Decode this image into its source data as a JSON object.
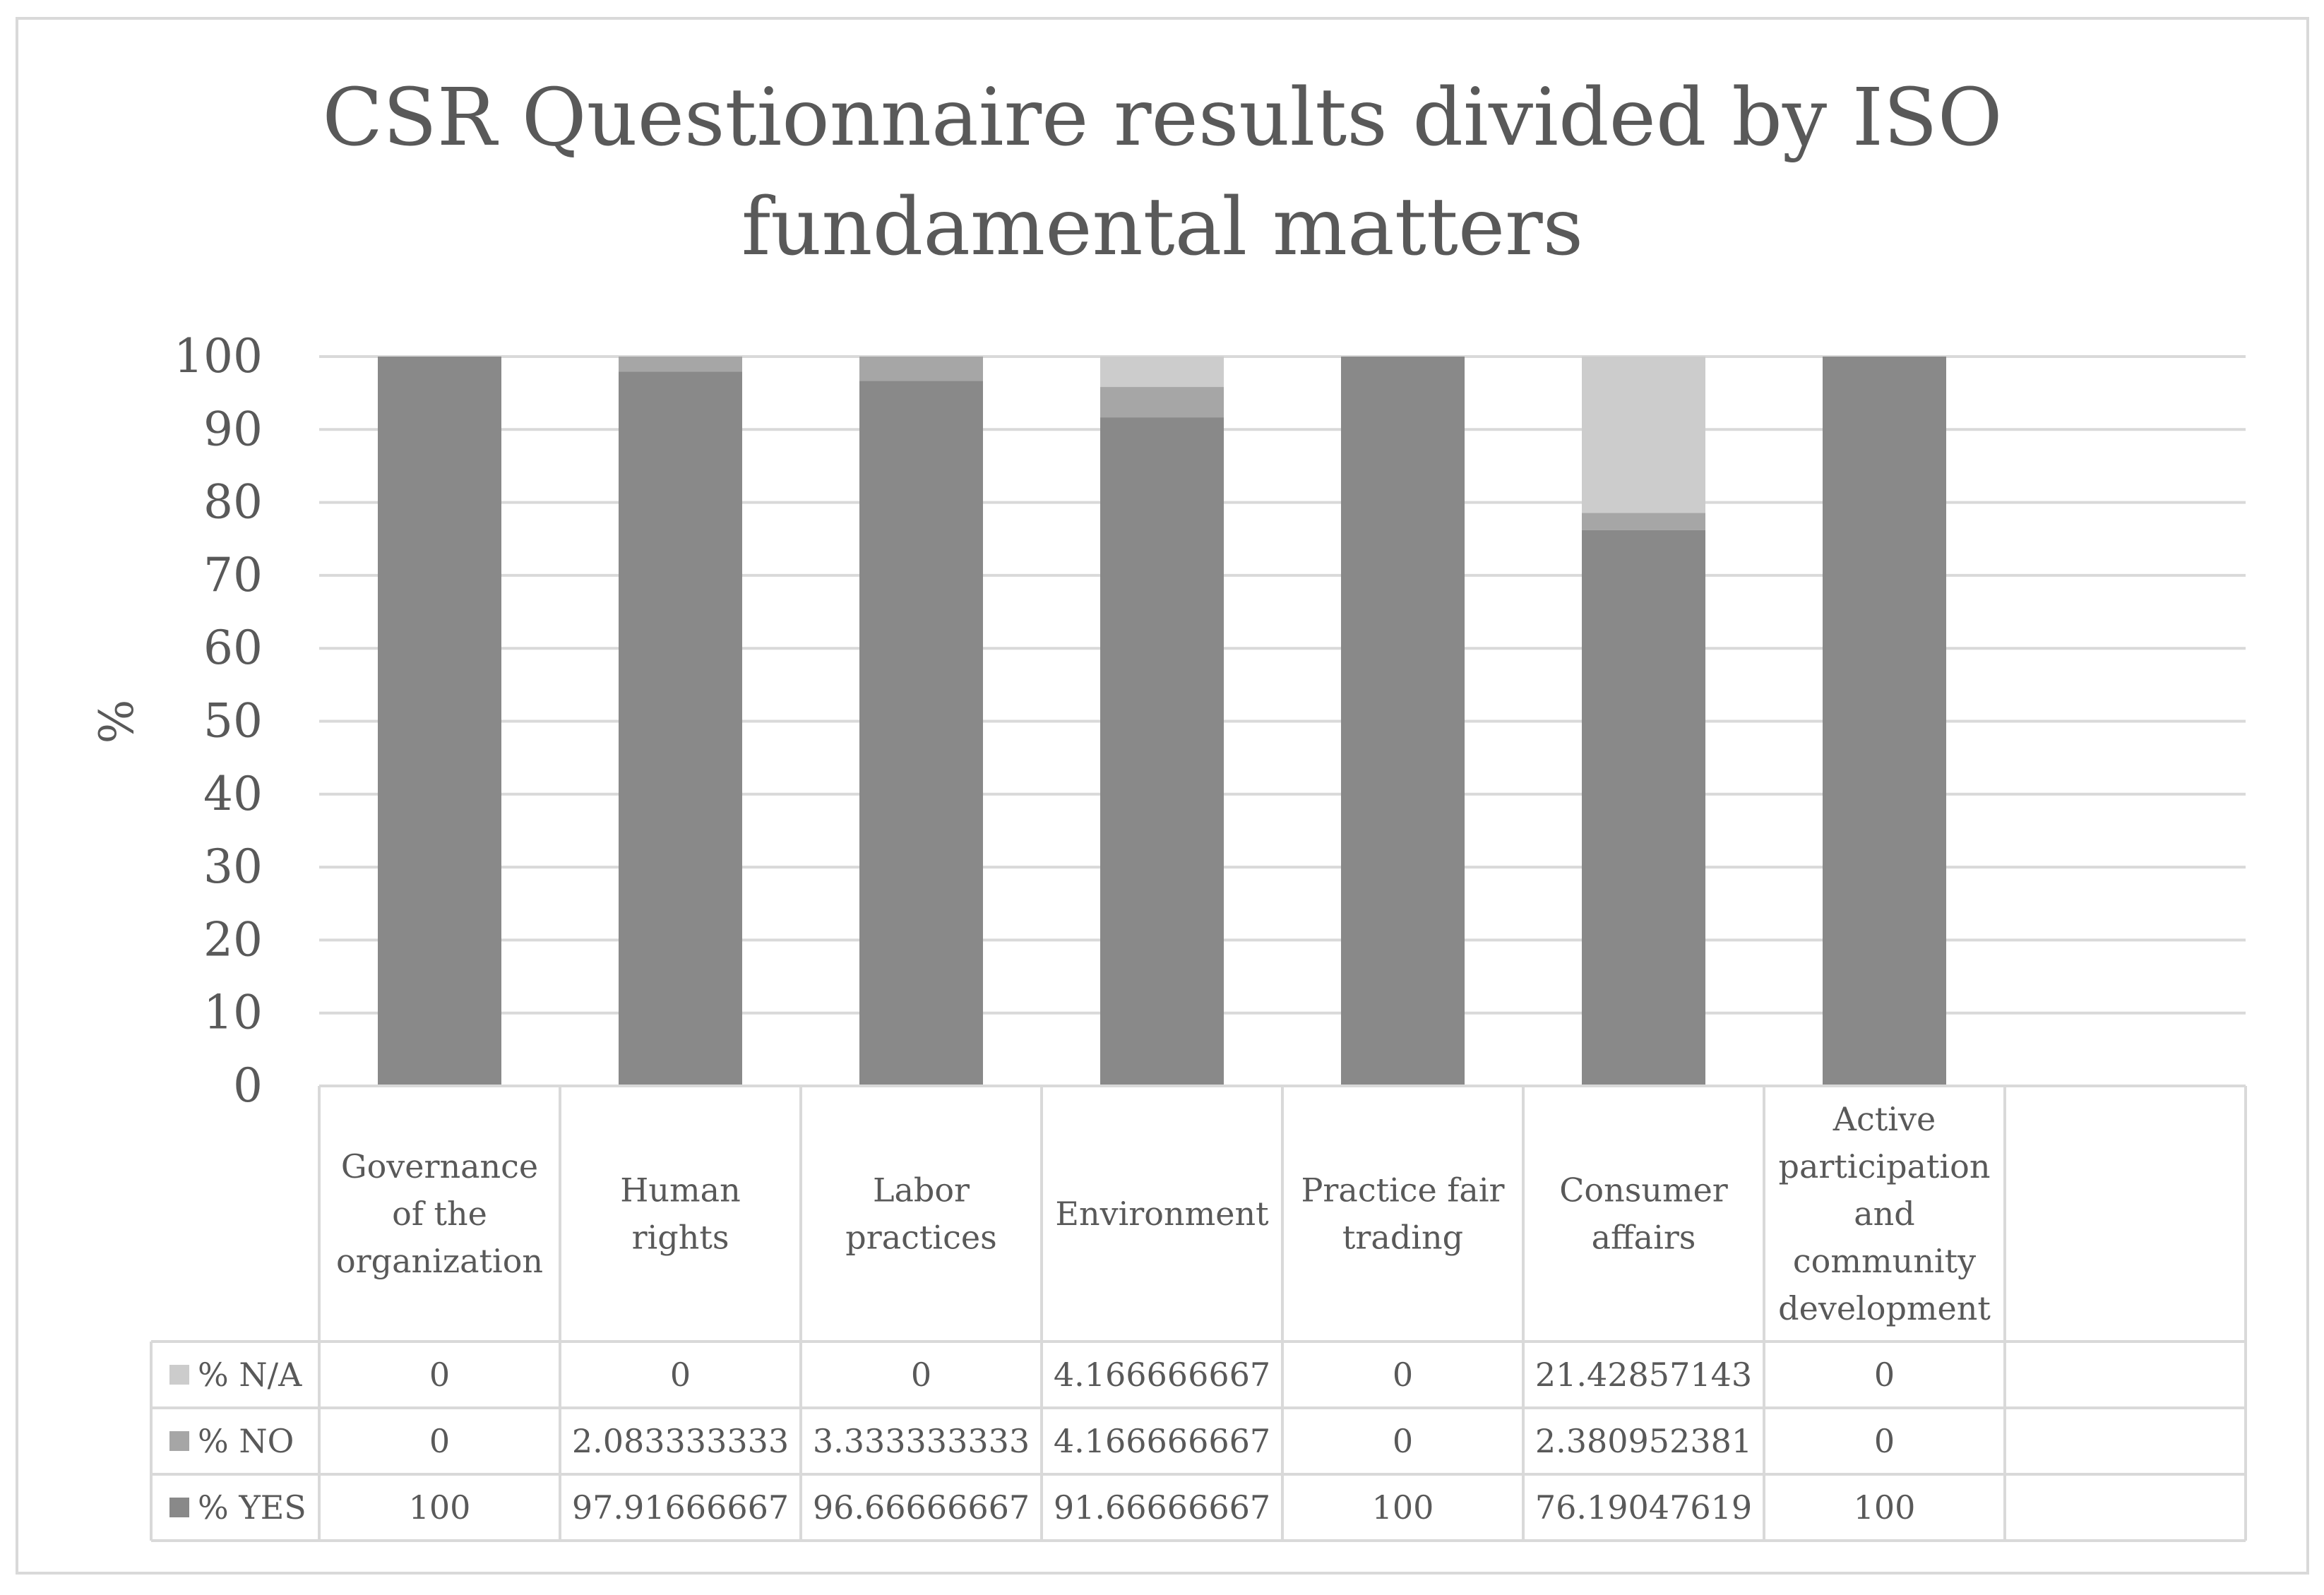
{
  "chart_data": {
    "type": "bar",
    "stacked": true,
    "title": "CSR Questionnaire results divided by ISO fundamental matters",
    "ylabel": "%",
    "ylim": [
      0,
      100
    ],
    "yticks": [
      "0",
      "10",
      "20",
      "30",
      "40",
      "50",
      "60",
      "70",
      "80",
      "90",
      "100"
    ],
    "grid": true,
    "legend_placement": "data-table",
    "categories": [
      "Governance of the organization",
      "Human rights",
      "Labor practices",
      "Environment",
      "Practice fair trading",
      "Consumer affairs",
      "Active participation and community development"
    ],
    "category_lines": [
      [
        "Governance",
        "of the",
        "organization"
      ],
      [
        "Human",
        "rights"
      ],
      [
        "Labor",
        "practices"
      ],
      [
        "Environment"
      ],
      [
        "Practice fair",
        "trading"
      ],
      [
        "Consumer",
        "affairs"
      ],
      [
        "Active",
        "participation",
        "and",
        "community",
        "development"
      ]
    ],
    "series": [
      {
        "name": "% YES",
        "color": "#898989",
        "values": [
          100,
          97.91666667,
          96.66666667,
          91.66666667,
          100,
          76.19047619,
          100
        ],
        "labels": [
          "100",
          "97.91666667",
          "96.66666667",
          "91.66666667",
          "100",
          "76.19047619",
          "100"
        ]
      },
      {
        "name": "% NO",
        "color": "#a6a6a6",
        "values": [
          0,
          2.083333333,
          3.333333333,
          4.166666667,
          0,
          2.380952381,
          0
        ],
        "labels": [
          "0",
          "2.083333333",
          "3.333333333",
          "4.166666667",
          "0",
          "2.380952381",
          "0"
        ]
      },
      {
        "name": "% N/A",
        "color": "#cccccc",
        "values": [
          0,
          0,
          0,
          4.166666667,
          0,
          21.42857143,
          0
        ],
        "labels": [
          "0",
          "0",
          "0",
          "4.166666667",
          "0",
          "21.42857143",
          "0"
        ]
      }
    ],
    "table_row_order": [
      "% N/A",
      "% NO",
      "% YES"
    ]
  }
}
